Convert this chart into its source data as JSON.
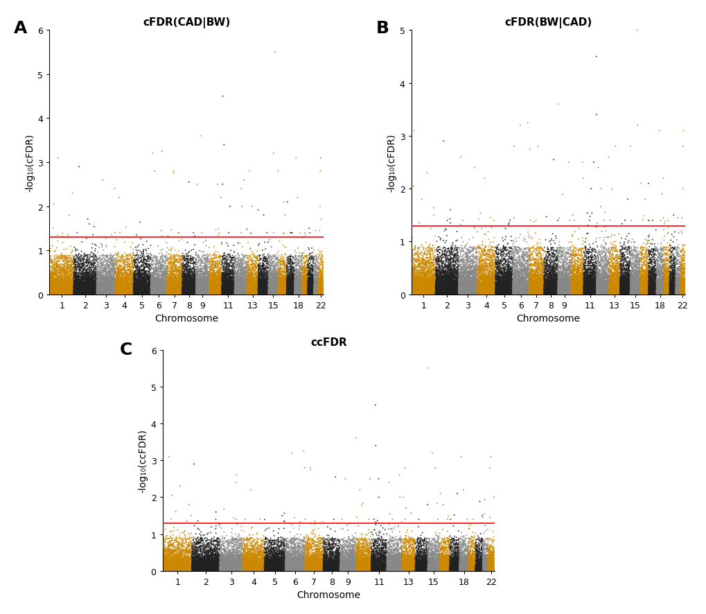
{
  "title_A": "cFDR(CAD|BW)",
  "title_B": "cFDR(BW|CAD)",
  "title_C": "ccFDR",
  "label_A": "A",
  "label_B": "B",
  "label_C": "C",
  "ylabel_A": "-log₁₀(cFDR)",
  "ylabel_B": "-log₁₀(cFDR)",
  "ylabel_C": "-log₁₀(ccFDR)",
  "xlabel": "Chromosome",
  "threshold": 1.3,
  "ylim_A": [
    0,
    6
  ],
  "ylim_B": [
    0,
    5
  ],
  "ylim_C": [
    0,
    6
  ],
  "yticks_A": [
    0,
    1,
    2,
    3,
    4,
    5,
    6
  ],
  "yticks_B": [
    0,
    1,
    2,
    3,
    4,
    5
  ],
  "yticks_C": [
    0,
    1,
    2,
    3,
    4,
    5,
    6
  ],
  "color_orange": "#CC8800",
  "color_black": "#222222",
  "color_gray": "#888888",
  "threshold_line_color": "red",
  "title_fontsize": 11,
  "label_fontsize": 18,
  "axis_label_fontsize": 10,
  "tick_fontsize": 9,
  "display_chroms": [
    1,
    2,
    3,
    4,
    5,
    6,
    7,
    8,
    9,
    11,
    13,
    15,
    18,
    22
  ]
}
